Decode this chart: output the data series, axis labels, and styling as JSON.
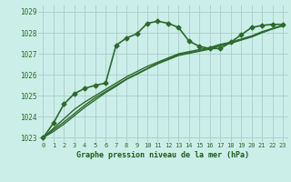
{
  "title": "Graphe pression niveau de la mer (hPa)",
  "background_color": "#cceee8",
  "plot_bg_color": "#cceee8",
  "grid_color": "#aacccc",
  "line_color": "#2d6a2d",
  "xlim": [
    -0.5,
    23.5
  ],
  "ylim": [
    1022.8,
    1029.3
  ],
  "yticks": [
    1023,
    1024,
    1025,
    1026,
    1027,
    1028,
    1029
  ],
  "xticks": [
    0,
    1,
    2,
    3,
    4,
    5,
    6,
    7,
    8,
    9,
    10,
    11,
    12,
    13,
    14,
    15,
    16,
    17,
    18,
    19,
    20,
    21,
    22,
    23
  ],
  "series": [
    {
      "x": [
        0,
        1,
        2,
        3,
        4,
        5,
        6,
        7,
        8,
        9,
        10,
        11,
        12,
        13,
        14,
        15,
        16,
        17,
        18,
        19,
        20,
        21,
        22,
        23
      ],
      "y": [
        1023.0,
        1023.7,
        1024.6,
        1025.1,
        1025.35,
        1025.5,
        1025.6,
        1027.4,
        1027.75,
        1027.95,
        1028.45,
        1028.55,
        1028.45,
        1028.25,
        1027.6,
        1027.35,
        1027.25,
        1027.25,
        1027.55,
        1027.9,
        1028.25,
        1028.35,
        1028.4,
        1028.4
      ],
      "marker": "D",
      "markersize": 2.5,
      "linewidth": 1.2
    },
    {
      "x": [
        0,
        1,
        2,
        3,
        4,
        5,
        6,
        7,
        8,
        9,
        10,
        11,
        12,
        13,
        14,
        15,
        16,
        17,
        18,
        19,
        20,
        21,
        22,
        23
      ],
      "y": [
        1023.0,
        1023.45,
        1023.9,
        1024.35,
        1024.7,
        1025.0,
        1025.3,
        1025.6,
        1025.9,
        1026.15,
        1026.4,
        1026.6,
        1026.8,
        1027.0,
        1027.1,
        1027.2,
        1027.3,
        1027.45,
        1027.55,
        1027.7,
        1027.85,
        1028.05,
        1028.2,
        1028.35
      ],
      "marker": null,
      "linewidth": 1.0
    },
    {
      "x": [
        0,
        1,
        2,
        3,
        4,
        5,
        6,
        7,
        8,
        9,
        10,
        11,
        12,
        13,
        14,
        15,
        16,
        17,
        18,
        19,
        20,
        21,
        22,
        23
      ],
      "y": [
        1023.0,
        1023.38,
        1023.75,
        1024.15,
        1024.55,
        1024.9,
        1025.2,
        1025.5,
        1025.8,
        1026.05,
        1026.3,
        1026.55,
        1026.75,
        1026.95,
        1027.05,
        1027.15,
        1027.25,
        1027.4,
        1027.52,
        1027.68,
        1027.82,
        1028.02,
        1028.2,
        1028.35
      ],
      "marker": null,
      "linewidth": 1.0
    },
    {
      "x": [
        0,
        1,
        2,
        3,
        4,
        5,
        6,
        7,
        8,
        9,
        10,
        11,
        12,
        13,
        14,
        15,
        16,
        17,
        18,
        19,
        20,
        21,
        22,
        23
      ],
      "y": [
        1023.0,
        1023.3,
        1023.65,
        1024.05,
        1024.45,
        1024.8,
        1025.15,
        1025.45,
        1025.78,
        1026.02,
        1026.28,
        1026.52,
        1026.72,
        1026.92,
        1027.02,
        1027.12,
        1027.22,
        1027.38,
        1027.5,
        1027.65,
        1027.8,
        1028.0,
        1028.18,
        1028.33
      ],
      "marker": null,
      "linewidth": 1.0
    }
  ]
}
